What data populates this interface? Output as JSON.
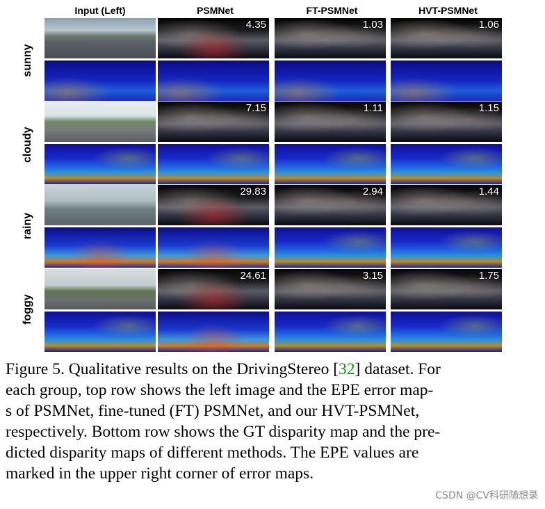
{
  "figure": {
    "columns": [
      "Input (Left)",
      "PSMNet",
      "FT-PSMNet",
      "HVT-PSMNet"
    ],
    "column_colors": [
      "#000000",
      "#000000",
      "#000000",
      "#000000"
    ],
    "rows": [
      {
        "label": "sunny",
        "epe": {
          "psmnet": "4.35",
          "ft_psmnet": "1.03",
          "hvt_psmnet": "1.06"
        }
      },
      {
        "label": "cloudy",
        "epe": {
          "psmnet": "7.15",
          "ft_psmnet": "1.11",
          "hvt_psmnet": "1.15"
        }
      },
      {
        "label": "rainy",
        "epe": {
          "psmnet": "29.83",
          "ft_psmnet": "2.94",
          "hvt_psmnet": "1.44"
        }
      },
      {
        "label": "foggy",
        "epe": {
          "psmnet": "24.61",
          "ft_psmnet": "3.15",
          "hvt_psmnet": "1.75"
        }
      }
    ]
  },
  "caption": {
    "line1_a": "Figure 5. Qualitative results on the DrivingStereo [",
    "line1_cite": "32",
    "line1_b": "] dataset. For",
    "line2": "each group, top row shows the left image and the EPE error map-",
    "line3": "s of PSMNet, fine-tuned (FT) PSMNet, and our HVT-PSMNet,",
    "line4": "respectively. Bottom row shows the GT disparity map and the pre-",
    "line5": "dicted disparity maps of different methods.  The EPE values are",
    "line6": "marked in the upper right corner of error maps.",
    "cite_color": "#00a000"
  },
  "watermark": "CSDN @CV科研随想录"
}
